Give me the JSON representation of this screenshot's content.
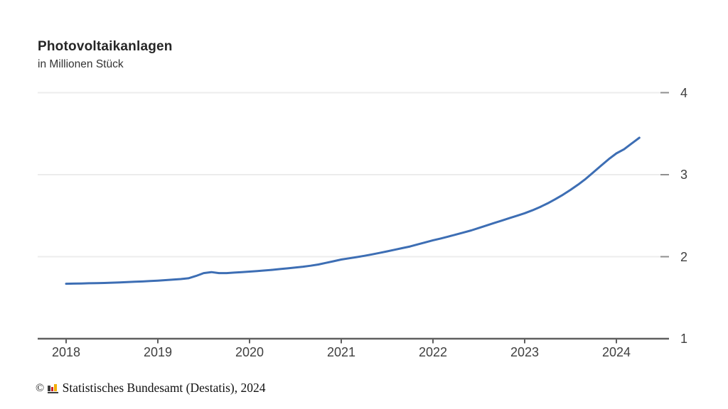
{
  "header": {
    "title": "Photovoltaikanlagen",
    "subtitle": "in Millionen Stück"
  },
  "chart_data": {
    "type": "line",
    "title": "Photovoltaikanlagen",
    "subtitle": "in Millionen Stück",
    "ylabel": "in Millionen Stück",
    "x_ticks": [
      2018,
      2019,
      2020,
      2021,
      2022,
      2023,
      2024
    ],
    "y_ticks": [
      1,
      2,
      3,
      4
    ],
    "ylim": [
      1,
      4
    ],
    "grid": true,
    "legend_position": "none",
    "series": [
      {
        "name": "Photovoltaikanlagen",
        "unit": "Millionen Stück",
        "start": "2018-01",
        "frequency": "monthly",
        "values": [
          1.67,
          1.672,
          1.674,
          1.676,
          1.678,
          1.68,
          1.683,
          1.686,
          1.69,
          1.694,
          1.698,
          1.703,
          1.708,
          1.714,
          1.72,
          1.727,
          1.737,
          1.765,
          1.8,
          1.812,
          1.8,
          1.8,
          1.806,
          1.812,
          1.818,
          1.825,
          1.832,
          1.84,
          1.849,
          1.858,
          1.868,
          1.878,
          1.89,
          1.905,
          1.925,
          1.945,
          1.965,
          1.98,
          1.995,
          2.01,
          2.028,
          2.046,
          2.065,
          2.085,
          2.105,
          2.125,
          2.15,
          2.175,
          2.2,
          2.222,
          2.245,
          2.27,
          2.295,
          2.32,
          2.35,
          2.38,
          2.41,
          2.44,
          2.47,
          2.5,
          2.53,
          2.565,
          2.605,
          2.65,
          2.7,
          2.755,
          2.815,
          2.88,
          2.95,
          3.03,
          3.11,
          3.19,
          3.26,
          3.31,
          3.38,
          3.45
        ]
      }
    ]
  },
  "colors": {
    "line": "#3d6eb4",
    "grid": "#ececec",
    "axis": "#5f5f5f",
    "right_tick": "#8f8f8f",
    "tick_label": "#3f3f3f",
    "title": "#262626",
    "background": "#ffffff"
  },
  "footer": {
    "copyright": "©",
    "source": "Statistisches Bundesamt (Destatis), 2024",
    "logo_colors": {
      "black": "#3c3c3b",
      "red": "#cc2228",
      "gold": "#f2ae00"
    }
  }
}
